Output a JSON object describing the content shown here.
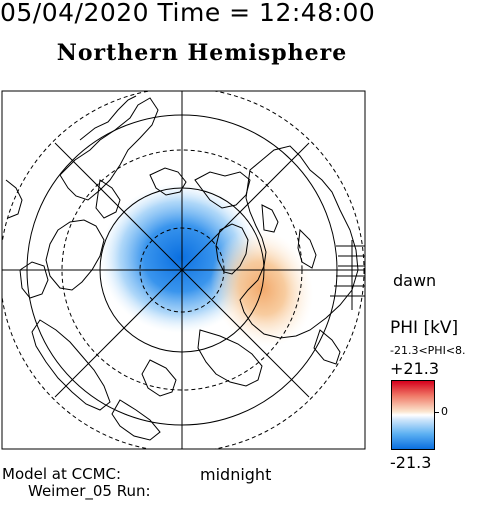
{
  "header": {
    "datetime": "05/04/2020 Time = 12:48:00",
    "title": "Northern Hemisphere"
  },
  "map": {
    "projection": "polar",
    "pole": "north",
    "latitude_circles_deg": [
      80,
      70,
      60,
      50
    ],
    "meridian_spacing_deg": 45,
    "orientation_labels": {
      "dawn": "dawn",
      "midnight": "midnight"
    },
    "field": {
      "negative_cell": "dusk side, centred near the pole, blue",
      "positive_cell": "dawn side, red/orange"
    }
  },
  "colorbar": {
    "parameter": "PHI [kV]",
    "range_text": "-21.3<PHI<8.",
    "max_label": "+21.3",
    "zero_label": "0",
    "min_label": "-21.3",
    "colors": {
      "max": "#d6001c",
      "zero": "#ffffff",
      "min": "#0a6fe0"
    }
  },
  "footer": {
    "model_label": "Model at CCMC:",
    "run_label": "Weimer_05 Run:"
  }
}
